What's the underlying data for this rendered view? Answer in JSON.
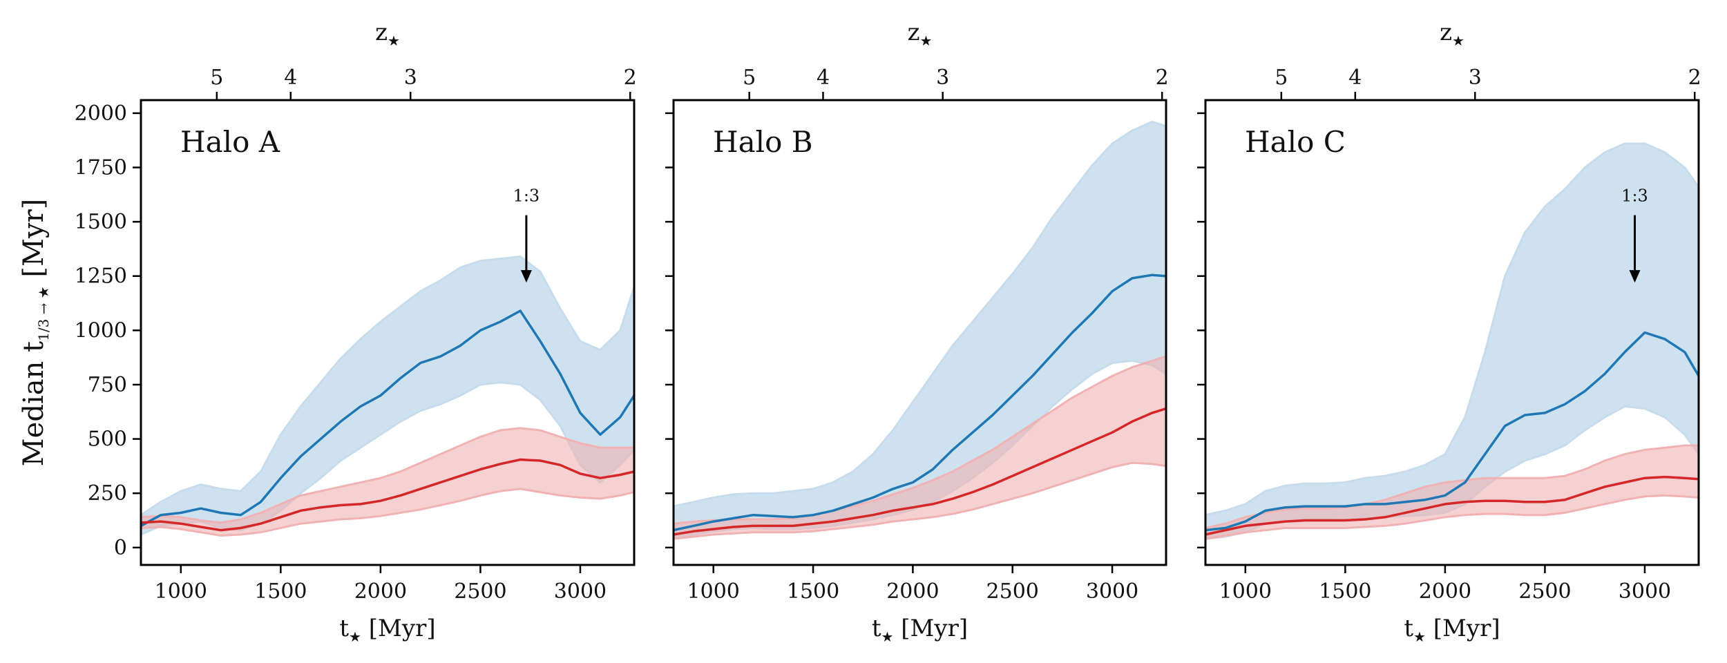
{
  "chart_data": {
    "type": "line",
    "ylabel": "Median t",
    "ylabel_sub": "1/3 → ★",
    "ylabel_unit": "[Myr]",
    "xlabel": "t",
    "xlabel_sub": "★",
    "xlabel_unit": "[Myr]",
    "top_axis_label": "z",
    "top_axis_label_sub": "★",
    "xlim": [
      800,
      3270
    ],
    "ylim": [
      -80,
      2060
    ],
    "yticks": [
      0,
      250,
      500,
      750,
      1000,
      1250,
      1500,
      1750,
      2000
    ],
    "xticks": [
      1000,
      1500,
      2000,
      2500,
      3000
    ],
    "top_ticks": [
      {
        "label": "5",
        "t": 1180
      },
      {
        "label": "4",
        "t": 1550
      },
      {
        "label": "3",
        "t": 2150
      },
      {
        "label": "2",
        "t": 3250
      }
    ],
    "colors": {
      "blue": "#1f77b4",
      "blue_band": "#c6dcec",
      "red": "#d62728",
      "red_band": "#f0b2b3"
    },
    "panels": [
      {
        "title": "Halo A",
        "annotation": {
          "text": "1:3",
          "x": 2730,
          "y_start": 1530,
          "y_end": 1220
        },
        "x": [
          800,
          900,
          1000,
          1100,
          1200,
          1300,
          1400,
          1500,
          1600,
          1700,
          1800,
          1900,
          2000,
          2100,
          2200,
          2300,
          2400,
          2500,
          2600,
          2700,
          2800,
          2900,
          3000,
          3100,
          3200,
          3270
        ],
        "series": [
          {
            "name": "blue",
            "median": [
              100,
              150,
              160,
              180,
              160,
              150,
              210,
              320,
              420,
              500,
              580,
              650,
              700,
              780,
              850,
              880,
              930,
              1000,
              1040,
              1090,
              950,
              800,
              620,
              520,
              600,
              700
            ],
            "upper": [
              150,
              210,
              260,
              290,
              270,
              260,
              350,
              520,
              650,
              760,
              870,
              960,
              1040,
              1110,
              1180,
              1230,
              1290,
              1320,
              1330,
              1340,
              1270,
              1100,
              950,
              910,
              1000,
              1200
            ],
            "lower": [
              60,
              100,
              110,
              120,
              90,
              80,
              110,
              170,
              250,
              320,
              400,
              460,
              520,
              580,
              630,
              660,
              700,
              750,
              760,
              750,
              680,
              560,
              380,
              300,
              380,
              450
            ]
          },
          {
            "name": "red",
            "median": [
              115,
              120,
              110,
              95,
              80,
              90,
              110,
              140,
              170,
              185,
              195,
              200,
              215,
              240,
              270,
              300,
              330,
              360,
              385,
              405,
              400,
              380,
              340,
              320,
              335,
              350
            ],
            "upper": [
              140,
              145,
              140,
              125,
              115,
              130,
              160,
              200,
              240,
              260,
              280,
              300,
              320,
              350,
              390,
              430,
              470,
              510,
              540,
              550,
              540,
              510,
              480,
              460,
              460,
              460
            ],
            "lower": [
              90,
              95,
              85,
              70,
              55,
              60,
              70,
              90,
              110,
              120,
              130,
              135,
              145,
              160,
              175,
              195,
              215,
              240,
              260,
              270,
              255,
              240,
              230,
              225,
              240,
              255
            ]
          }
        ]
      },
      {
        "title": "Halo B",
        "annotation": null,
        "x": [
          800,
          900,
          1000,
          1100,
          1200,
          1300,
          1400,
          1500,
          1600,
          1700,
          1800,
          1900,
          2000,
          2100,
          2200,
          2300,
          2400,
          2500,
          2600,
          2700,
          2800,
          2900,
          3000,
          3100,
          3200,
          3270
        ],
        "series": [
          {
            "name": "blue",
            "median": [
              80,
              100,
              120,
              135,
              150,
              145,
              140,
              150,
              170,
              200,
              230,
              270,
              300,
              360,
              450,
              530,
              610,
              700,
              790,
              890,
              990,
              1080,
              1180,
              1240,
              1255,
              1250
            ],
            "upper": [
              190,
              210,
              230,
              245,
              250,
              250,
              260,
              270,
              300,
              350,
              430,
              540,
              670,
              800,
              930,
              1040,
              1150,
              1260,
              1380,
              1520,
              1640,
              1760,
              1860,
              1920,
              1960,
              1940
            ],
            "lower": [
              40,
              60,
              75,
              85,
              90,
              85,
              85,
              90,
              100,
              115,
              130,
              150,
              175,
              210,
              260,
              320,
              390,
              470,
              560,
              650,
              730,
              800,
              850,
              860,
              840,
              800
            ]
          },
          {
            "name": "red",
            "median": [
              60,
              75,
              85,
              95,
              100,
              100,
              100,
              110,
              120,
              135,
              150,
              170,
              185,
              200,
              225,
              255,
              290,
              330,
              370,
              410,
              450,
              490,
              530,
              580,
              620,
              640
            ],
            "upper": [
              110,
              120,
              125,
              130,
              130,
              130,
              135,
              150,
              170,
              190,
              215,
              245,
              275,
              310,
              350,
              400,
              450,
              510,
              570,
              630,
              690,
              740,
              790,
              830,
              860,
              880
            ],
            "lower": [
              40,
              50,
              60,
              65,
              70,
              70,
              70,
              75,
              85,
              95,
              105,
              120,
              130,
              140,
              155,
              175,
              200,
              225,
              250,
              280,
              310,
              340,
              370,
              390,
              385,
              375
            ]
          }
        ]
      },
      {
        "title": "Halo C",
        "annotation": {
          "text": "1:3",
          "x": 2950,
          "y_start": 1530,
          "y_end": 1220
        },
        "x": [
          800,
          900,
          1000,
          1100,
          1200,
          1300,
          1400,
          1500,
          1600,
          1700,
          1800,
          1900,
          2000,
          2100,
          2200,
          2300,
          2400,
          2500,
          2600,
          2700,
          2800,
          2900,
          3000,
          3100,
          3200,
          3270
        ],
        "series": [
          {
            "name": "blue",
            "median": [
              80,
              90,
              120,
              170,
              185,
              190,
              190,
              190,
              200,
              200,
              210,
              220,
              240,
              300,
              430,
              560,
              610,
              620,
              660,
              720,
              800,
              900,
              990,
              960,
              900,
              790
            ],
            "upper": [
              150,
              170,
              200,
              260,
              285,
              295,
              295,
              300,
              320,
              330,
              350,
              380,
              430,
              600,
              900,
              1250,
              1450,
              1570,
              1650,
              1750,
              1820,
              1860,
              1860,
              1820,
              1750,
              1660
            ],
            "lower": [
              40,
              50,
              70,
              110,
              130,
              135,
              135,
              130,
              135,
              140,
              145,
              150,
              160,
              200,
              280,
              350,
              400,
              430,
              470,
              540,
              600,
              650,
              640,
              600,
              520,
              430
            ]
          },
          {
            "name": "red",
            "median": [
              60,
              80,
              100,
              110,
              120,
              125,
              125,
              125,
              130,
              140,
              160,
              180,
              200,
              210,
              215,
              215,
              210,
              210,
              220,
              250,
              280,
              300,
              320,
              325,
              320,
              315
            ],
            "upper": [
              90,
              110,
              140,
              160,
              175,
              180,
              180,
              185,
              200,
              220,
              250,
              280,
              300,
              310,
              320,
              320,
              320,
              320,
              330,
              360,
              400,
              430,
              450,
              460,
              470,
              470
            ],
            "lower": [
              40,
              55,
              70,
              80,
              90,
              90,
              90,
              90,
              95,
              100,
              110,
              125,
              140,
              150,
              155,
              155,
              150,
              150,
              160,
              180,
              200,
              220,
              235,
              240,
              235,
              230
            ]
          }
        ]
      }
    ]
  }
}
